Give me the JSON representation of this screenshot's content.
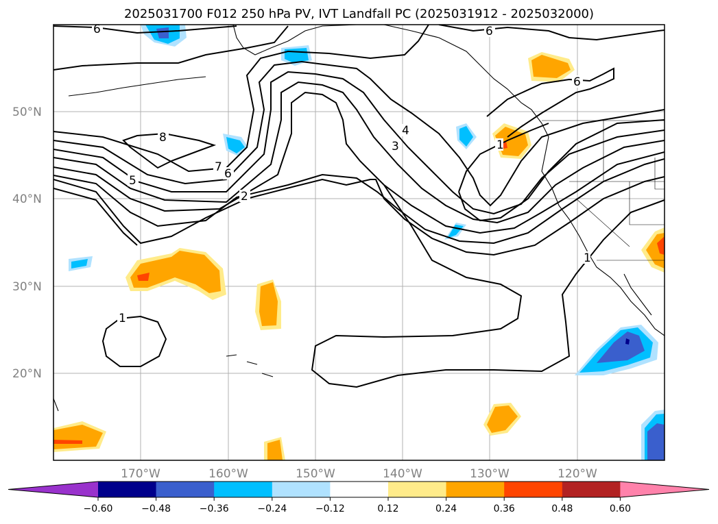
{
  "title": "2025031700 F012 250 hPa PV, IVT Landfall PC (2025031912 - 2025032000)",
  "lat_labels": [
    "50°N",
    "40°N",
    "30°N",
    "20°N"
  ],
  "lon_labels": [
    "170°W",
    "160°W",
    "150°W",
    "140°W",
    "130°W",
    "120°W"
  ],
  "colorbar": {
    "ticks": [
      "−0.60",
      "−0.48",
      "−0.36",
      "−0.24",
      "−0.12",
      "0.12",
      "0.24",
      "0.36",
      "0.48",
      "0.60"
    ],
    "colors": [
      "#9932cc",
      "#00008b",
      "#3a5fcd",
      "#00bfff",
      "#b0e2ff",
      "#ffffff",
      "#ffeb8a",
      "#ffa500",
      "#ff4500",
      "#b22222",
      "#ff82ab"
    ]
  },
  "contour_labels": [
    "6",
    "6",
    "6",
    "8",
    "7",
    "6",
    "5",
    "2",
    "4",
    "3",
    "1",
    "1",
    "1"
  ],
  "map": {
    "extent_lon": [
      -180,
      -110
    ],
    "extent_lat": [
      10,
      60
    ],
    "pv_contour_levels": [
      1,
      2,
      3,
      4,
      5,
      6,
      7,
      8
    ],
    "shading": "IVT Landfall PC"
  }
}
